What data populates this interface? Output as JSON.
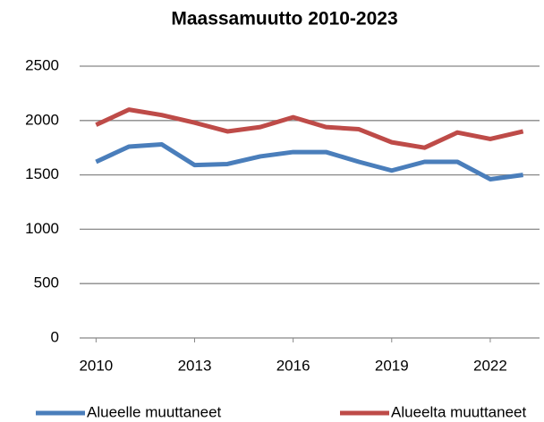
{
  "chart_data": {
    "type": "line",
    "title": "Maassamuutto 2010-2023",
    "x": [
      2010,
      2011,
      2012,
      2013,
      2014,
      2015,
      2016,
      2017,
      2018,
      2019,
      2020,
      2021,
      2022,
      2023
    ],
    "series": [
      {
        "name": "Alueelle muuttaneet",
        "color": "#4a7ebb",
        "values": [
          1620,
          1760,
          1780,
          1590,
          1600,
          1670,
          1710,
          1710,
          1620,
          1540,
          1620,
          1620,
          1460,
          1500
        ]
      },
      {
        "name": "Alueelta muuttaneet",
        "color": "#be4b48",
        "values": [
          1960,
          2100,
          2050,
          1980,
          1900,
          1940,
          2030,
          1940,
          1920,
          1800,
          1750,
          1890,
          1830,
          1900
        ]
      }
    ],
    "xlim": [
      2009.5,
      2023.5
    ],
    "xticks": [
      2010,
      2013,
      2016,
      2019,
      2022
    ],
    "ylim": [
      0,
      2500
    ],
    "yticks": [
      0,
      500,
      1000,
      1500,
      2000,
      2500
    ],
    "grid": true,
    "legend": "bottom"
  }
}
